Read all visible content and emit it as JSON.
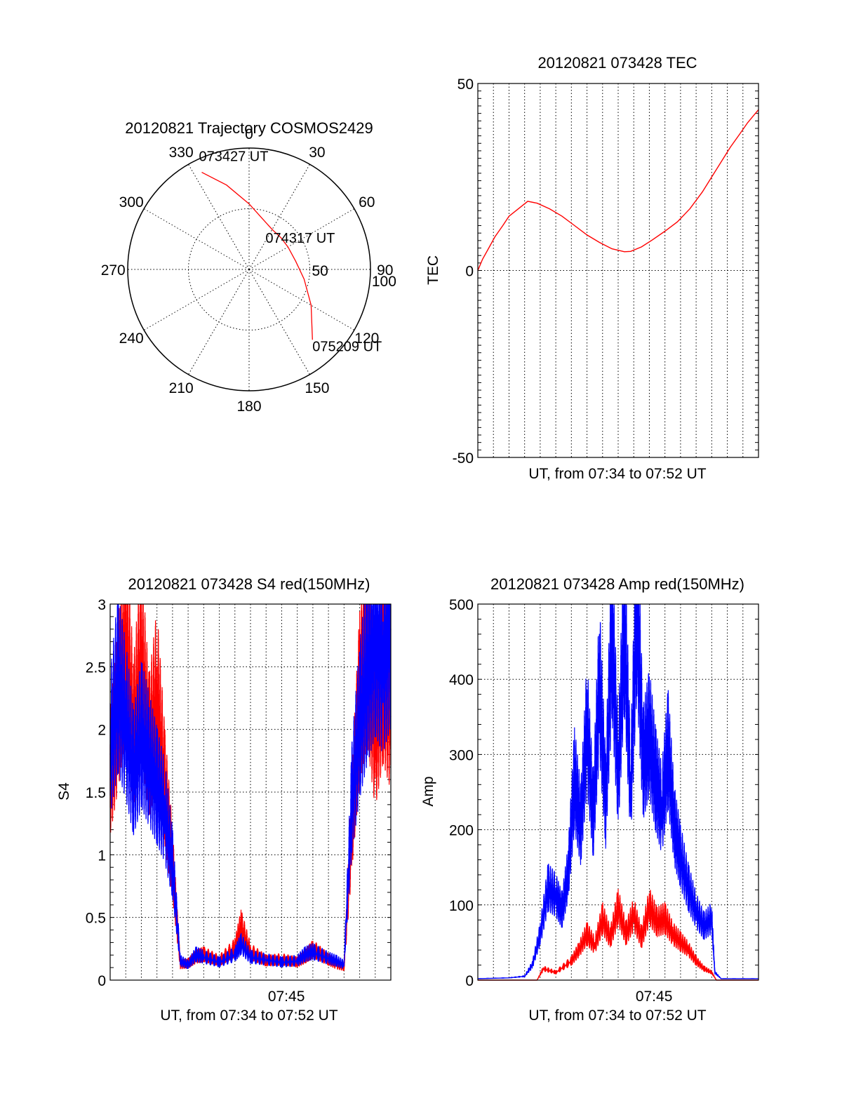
{
  "colors": {
    "red": "#ff0000",
    "blue": "#0000ff",
    "axis": "#000000"
  },
  "chart_data": [
    {
      "id": "trajectory",
      "type": "polar",
      "title": "20120821 Trajectory COSMOS2429",
      "angle_labels": [
        {
          "angle": 0,
          "text": "0"
        },
        {
          "angle": 30,
          "text": "30"
        },
        {
          "angle": 60,
          "text": "60"
        },
        {
          "angle": 90,
          "text": "90"
        },
        {
          "angle": 120,
          "text": "120"
        },
        {
          "angle": 150,
          "text": "150"
        },
        {
          "angle": 180,
          "text": "180"
        },
        {
          "angle": 210,
          "text": "210"
        },
        {
          "angle": 240,
          "text": "240"
        },
        {
          "angle": 270,
          "text": "270"
        },
        {
          "angle": 300,
          "text": "300"
        },
        {
          "angle": 330,
          "text": "330"
        }
      ],
      "radial_labels": [
        {
          "value": 50,
          "text": "50"
        },
        {
          "value": 100,
          "text": "100"
        }
      ],
      "r_max": 100,
      "trajectory": {
        "azimuth": [
          334,
          345,
          0,
          15,
          30,
          45,
          60,
          80,
          100,
          120,
          138
        ],
        "radius": [
          89,
          72,
          54,
          43,
          38,
          37,
          37,
          39,
          46,
          59,
          78
        ]
      },
      "points": [
        {
          "label": "073427 UT",
          "azimuth": 334,
          "radius": 89
        },
        {
          "label": "074317 UT",
          "azimuth": 60,
          "radius": 37
        },
        {
          "label": "075209 UT",
          "azimuth": 138,
          "radius": 78
        }
      ]
    },
    {
      "id": "tec",
      "type": "line",
      "title": "20120821 073428 TEC",
      "xlabel": "UT, from 07:34 to 07:52 UT",
      "ylabel": "TEC",
      "xlim": [
        0,
        18
      ],
      "ylim": [
        -50,
        50
      ],
      "yticks": [
        -50,
        0,
        50
      ],
      "xticks": [],
      "grid": true,
      "series": [
        {
          "color": "#ff0000",
          "x": [
            0,
            0.3,
            0.7,
            1.1,
            1.6,
            2.0,
            2.6,
            3.2,
            3.8,
            4.6,
            5.4,
            6.2,
            7.0,
            7.8,
            8.6,
            9.4,
            9.8,
            10.5,
            11.2,
            12.0,
            12.8,
            13.6,
            14.4,
            15.0,
            15.6,
            16.2,
            16.8,
            17.3,
            17.7,
            18.0
          ],
          "y": [
            0,
            3,
            6,
            9,
            12,
            14.5,
            16.5,
            18.5,
            18,
            16.5,
            14.5,
            12,
            9.5,
            7.5,
            5.8,
            5,
            5.1,
            6.3,
            8.2,
            10.5,
            13,
            16.5,
            21,
            25,
            29,
            33,
            36.5,
            39.5,
            41.5,
            43
          ]
        }
      ]
    },
    {
      "id": "s4",
      "type": "line",
      "title": "20120821 073428 S4 red(150MHz)",
      "xlabel": "UT, from 07:34 to 07:52 UT",
      "ylabel": "S4",
      "xlim": [
        0,
        18
      ],
      "ylim": [
        0,
        3
      ],
      "yticks": [
        0,
        0.5,
        1,
        1.5,
        2,
        2.5,
        3
      ],
      "yticklabels": [
        "0",
        "0.5",
        "1",
        "1.5",
        "2",
        "2.5",
        "3"
      ],
      "xticks": [
        {
          "value": 11.3,
          "text": "07:45"
        }
      ],
      "grid": true,
      "series": [
        {
          "color": "#ff0000",
          "x": [
            0,
            0.5,
            1.0,
            1.5,
            2.0,
            2.5,
            3.0,
            3.5,
            4.0,
            4.5,
            5.0,
            5.5,
            6.0,
            7.0,
            8.0,
            8.4,
            9.0,
            10.0,
            11.0,
            12.0,
            12.5,
            13.0,
            14.0,
            14.5,
            15.0,
            15.5,
            16.0,
            16.5,
            17.0,
            17.5,
            18.0
          ],
          "y": [
            1.6,
            2.1,
            2.7,
            1.9,
            2.5,
            1.8,
            2.2,
            1.5,
            0.9,
            0.12,
            0.13,
            0.18,
            0.2,
            0.15,
            0.25,
            0.42,
            0.22,
            0.15,
            0.16,
            0.14,
            0.18,
            0.24,
            0.16,
            0.12,
            0.1,
            1.2,
            2.2,
            2.6,
            1.9,
            2.4,
            2.1
          ]
        },
        {
          "color": "#0000ff",
          "x": [
            0,
            0.5,
            1.0,
            1.5,
            2.0,
            2.5,
            3.0,
            3.5,
            4.0,
            4.5,
            5.0,
            5.5,
            6.0,
            7.0,
            8.0,
            8.4,
            9.0,
            10.0,
            11.0,
            12.0,
            12.5,
            13.0,
            14.0,
            14.5,
            15.0,
            15.5,
            16.0,
            16.5,
            17.0,
            17.5,
            18.0
          ],
          "y": [
            1.8,
            2.3,
            2.0,
            1.6,
            1.9,
            1.7,
            1.5,
            1.3,
            0.9,
            0.15,
            0.12,
            0.2,
            0.18,
            0.14,
            0.2,
            0.28,
            0.18,
            0.16,
            0.14,
            0.15,
            0.2,
            0.22,
            0.17,
            0.15,
            0.12,
            1.4,
            2.0,
            2.4,
            2.7,
            2.5,
            2.8
          ]
        }
      ]
    },
    {
      "id": "amp",
      "type": "line",
      "title": "20120821 073428 Amp red(150MHz)",
      "xlabel": "UT, from 07:34 to 07:52 UT",
      "ylabel": "Amp",
      "xlim": [
        0,
        18
      ],
      "ylim": [
        0,
        500
      ],
      "yticks": [
        0,
        100,
        200,
        300,
        400,
        500
      ],
      "yticklabels": [
        "0",
        "100",
        "200",
        "300",
        "400",
        "500"
      ],
      "xticks": [
        {
          "value": 11.3,
          "text": "07:45"
        }
      ],
      "grid": true,
      "series": [
        {
          "color": "#0000ff",
          "x": [
            0,
            2.0,
            3.0,
            3.5,
            4.0,
            4.5,
            5.0,
            5.4,
            5.8,
            6.2,
            6.6,
            7.0,
            7.4,
            7.8,
            8.2,
            8.6,
            9.0,
            9.4,
            9.8,
            10.2,
            10.6,
            11.0,
            11.4,
            11.8,
            12.2,
            12.6,
            13.0,
            13.5,
            14.0,
            14.5,
            15.0,
            15.2,
            15.6,
            18.0
          ],
          "y": [
            2,
            3,
            5,
            20,
            60,
            120,
            110,
            90,
            140,
            260,
            200,
            330,
            210,
            390,
            230,
            460,
            260,
            470,
            240,
            500,
            280,
            320,
            260,
            220,
            300,
            200,
            160,
            120,
            90,
            70,
            80,
            10,
            2,
            2
          ]
        },
        {
          "color": "#ff0000",
          "x": [
            0,
            3.8,
            4.2,
            5.0,
            6.0,
            6.5,
            7.0,
            7.5,
            8.0,
            8.5,
            9.0,
            9.5,
            10.0,
            10.5,
            11.0,
            11.5,
            12.0,
            12.5,
            13.0,
            13.5,
            14.0,
            14.5,
            15.0,
            15.3,
            18.0
          ],
          "y": [
            0,
            0,
            15,
            10,
            25,
            40,
            60,
            45,
            80,
            55,
            95,
            60,
            85,
            55,
            95,
            75,
            80,
            60,
            50,
            40,
            25,
            15,
            10,
            0,
            0
          ]
        }
      ]
    }
  ]
}
